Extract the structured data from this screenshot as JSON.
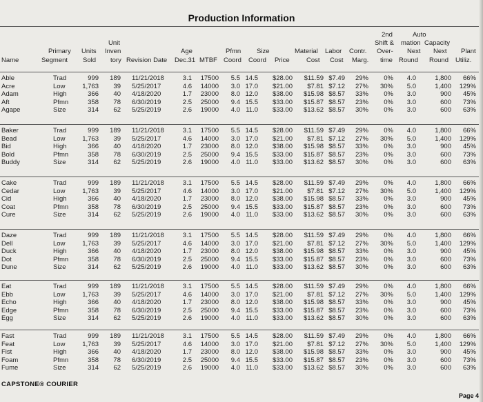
{
  "title": "Production Information",
  "headers": {
    "name": "Name",
    "segment": [
      "Primary",
      "Segment"
    ],
    "units": [
      "Units",
      "Sold"
    ],
    "inven": [
      "Unit",
      "Inven",
      "tory"
    ],
    "revision": [
      "Revision Date"
    ],
    "age": [
      "Age",
      "Dec.31"
    ],
    "mtbf": [
      "MTBF"
    ],
    "pfmn": [
      "Pfmn",
      "Coord"
    ],
    "size": [
      "Size",
      "Coord"
    ],
    "price": [
      "Price"
    ],
    "material": [
      "Material",
      "Cost"
    ],
    "labor": [
      "Labor",
      "Cost"
    ],
    "contr": [
      "Contr.",
      "Marg."
    ],
    "overtime": [
      "2nd",
      "Shift &",
      "Over-",
      "time"
    ],
    "automation": [
      "Auto",
      "mation",
      "Next",
      "Round"
    ],
    "capacity": [
      "Capacity",
      "Next",
      "Round"
    ],
    "plant": [
      "Plant",
      "Utiliz."
    ]
  },
  "groups": [
    {
      "names": [
        "Able",
        "Acre",
        "Adam",
        "Aft",
        "Agape"
      ],
      "segments": [
        "Trad",
        "Low",
        "High",
        "Pfmn",
        "Size"
      ],
      "units": [
        "999",
        "1,763",
        "366",
        "358",
        "314"
      ],
      "inven": [
        "189",
        "39",
        "40",
        "78",
        "62"
      ],
      "revision": [
        "11/21/2018",
        "5/25/2017",
        "4/18/2020",
        "6/30/2019",
        "5/25/2019"
      ],
      "age": [
        "3.1",
        "4.6",
        "1.7",
        "2.5",
        "2.6"
      ],
      "mtbf": [
        "17500",
        "14000",
        "23000",
        "25000",
        "19000"
      ],
      "pfmn": [
        "5.5",
        "3.0",
        "8.0",
        "9.4",
        "4.0"
      ],
      "size": [
        "14.5",
        "17.0",
        "12.0",
        "15.5",
        "11.0"
      ],
      "price": [
        "$28.00",
        "$21.00",
        "$38.00",
        "$33.00",
        "$33.00"
      ],
      "material": [
        "$11.59",
        "$7.81",
        "$15.98",
        "$15.87",
        "$13.62"
      ],
      "labor": [
        "$7.49",
        "$7.12",
        "$8.57",
        "$8.57",
        "$8.57"
      ],
      "contr": [
        "29%",
        "27%",
        "33%",
        "23%",
        "30%"
      ],
      "overtime": [
        "0%",
        "30%",
        "0%",
        "0%",
        "0%"
      ],
      "automation": [
        "4.0",
        "5.0",
        "3.0",
        "3.0",
        "3.0"
      ],
      "capacity": [
        "1,800",
        "1,400",
        "900",
        "600",
        "600"
      ],
      "plant": [
        "66%",
        "129%",
        "45%",
        "73%",
        "63%"
      ]
    },
    {
      "names": [
        "Baker",
        "Bead",
        "Bid",
        "Bold",
        "Buddy"
      ],
      "segments": [
        "Trad",
        "Low",
        "High",
        "Pfmn",
        "Size"
      ],
      "units": [
        "999",
        "1,763",
        "366",
        "358",
        "314"
      ],
      "inven": [
        "189",
        "39",
        "40",
        "78",
        "62"
      ],
      "revision": [
        "11/21/2018",
        "5/25/2017",
        "4/18/2020",
        "6/30/2019",
        "5/25/2019"
      ],
      "age": [
        "3.1",
        "4.6",
        "1.7",
        "2.5",
        "2.6"
      ],
      "mtbf": [
        "17500",
        "14000",
        "23000",
        "25000",
        "19000"
      ],
      "pfmn": [
        "5.5",
        "3.0",
        "8.0",
        "9.4",
        "4.0"
      ],
      "size": [
        "14.5",
        "17.0",
        "12.0",
        "15.5",
        "11.0"
      ],
      "price": [
        "$28.00",
        "$21.00",
        "$38.00",
        "$33.00",
        "$33.00"
      ],
      "material": [
        "$11.59",
        "$7.81",
        "$15.98",
        "$15.87",
        "$13.62"
      ],
      "labor": [
        "$7.49",
        "$7.12",
        "$8.57",
        "$8.57",
        "$8.57"
      ],
      "contr": [
        "29%",
        "27%",
        "33%",
        "23%",
        "30%"
      ],
      "overtime": [
        "0%",
        "30%",
        "0%",
        "0%",
        "0%"
      ],
      "automation": [
        "4.0",
        "5.0",
        "3.0",
        "3.0",
        "3.0"
      ],
      "capacity": [
        "1,800",
        "1,400",
        "900",
        "600",
        "600"
      ],
      "plant": [
        "66%",
        "129%",
        "45%",
        "73%",
        "63%"
      ]
    },
    {
      "names": [
        "Cake",
        "Cedar",
        "Cid",
        "Coat",
        "Cure"
      ],
      "segments": [
        "Trad",
        "Low",
        "High",
        "Pfmn",
        "Size"
      ],
      "units": [
        "999",
        "1,763",
        "366",
        "358",
        "314"
      ],
      "inven": [
        "189",
        "39",
        "40",
        "78",
        "62"
      ],
      "revision": [
        "11/21/2018",
        "5/25/2017",
        "4/18/2020",
        "6/30/2019",
        "5/25/2019"
      ],
      "age": [
        "3.1",
        "4.6",
        "1.7",
        "2.5",
        "2.6"
      ],
      "mtbf": [
        "17500",
        "14000",
        "23000",
        "25000",
        "19000"
      ],
      "pfmn": [
        "5.5",
        "3.0",
        "8.0",
        "9.4",
        "4.0"
      ],
      "size": [
        "14.5",
        "17.0",
        "12.0",
        "15.5",
        "11.0"
      ],
      "price": [
        "$28.00",
        "$21.00",
        "$38.00",
        "$33.00",
        "$33.00"
      ],
      "material": [
        "$11.59",
        "$7.81",
        "$15.98",
        "$15.87",
        "$13.62"
      ],
      "labor": [
        "$7.49",
        "$7.12",
        "$8.57",
        "$8.57",
        "$8.57"
      ],
      "contr": [
        "29%",
        "27%",
        "33%",
        "23%",
        "30%"
      ],
      "overtime": [
        "0%",
        "30%",
        "0%",
        "0%",
        "0%"
      ],
      "automation": [
        "4.0",
        "5.0",
        "3.0",
        "3.0",
        "3.0"
      ],
      "capacity": [
        "1,800",
        "1,400",
        "900",
        "600",
        "600"
      ],
      "plant": [
        "66%",
        "129%",
        "45%",
        "73%",
        "63%"
      ]
    },
    {
      "names": [
        "Daze",
        "Dell",
        "Duck",
        "Dot",
        "Dune"
      ],
      "segments": [
        "Trad",
        "Low",
        "High",
        "Pfmn",
        "Size"
      ],
      "units": [
        "999",
        "1,763",
        "366",
        "358",
        "314"
      ],
      "inven": [
        "189",
        "39",
        "40",
        "78",
        "62"
      ],
      "revision": [
        "11/21/2018",
        "5/25/2017",
        "4/18/2020",
        "6/30/2019",
        "5/25/2019"
      ],
      "age": [
        "3.1",
        "4.6",
        "1.7",
        "2.5",
        "2.6"
      ],
      "mtbf": [
        "17500",
        "14000",
        "23000",
        "25000",
        "19000"
      ],
      "pfmn": [
        "5.5",
        "3.0",
        "8.0",
        "9.4",
        "4.0"
      ],
      "size": [
        "14.5",
        "17.0",
        "12.0",
        "15.5",
        "11.0"
      ],
      "price": [
        "$28.00",
        "$21.00",
        "$38.00",
        "$33.00",
        "$33.00"
      ],
      "material": [
        "$11.59",
        "$7.81",
        "$15.98",
        "$15.87",
        "$13.62"
      ],
      "labor": [
        "$7.49",
        "$7.12",
        "$8.57",
        "$8.57",
        "$8.57"
      ],
      "contr": [
        "29%",
        "27%",
        "33%",
        "23%",
        "30%"
      ],
      "overtime": [
        "0%",
        "30%",
        "0%",
        "0%",
        "0%"
      ],
      "automation": [
        "4.0",
        "5.0",
        "3.0",
        "3.0",
        "3.0"
      ],
      "capacity": [
        "1,800",
        "1,400",
        "900",
        "600",
        "600"
      ],
      "plant": [
        "66%",
        "129%",
        "45%",
        "73%",
        "63%"
      ]
    },
    {
      "names": [
        "Eat",
        "Ebb",
        "Echo",
        "Edge",
        "Egg"
      ],
      "segments": [
        "Trad",
        "Low",
        "High",
        "Pfmn",
        "Size"
      ],
      "units": [
        "999",
        "1,763",
        "366",
        "358",
        "314"
      ],
      "inven": [
        "189",
        "39",
        "40",
        "78",
        "62"
      ],
      "revision": [
        "11/21/2018",
        "5/25/2017",
        "4/18/2020",
        "6/30/2019",
        "5/25/2019"
      ],
      "age": [
        "3.1",
        "4.6",
        "1.7",
        "2.5",
        "2.6"
      ],
      "mtbf": [
        "17500",
        "14000",
        "23000",
        "25000",
        "19000"
      ],
      "pfmn": [
        "5.5",
        "3.0",
        "8.0",
        "9.4",
        "4.0"
      ],
      "size": [
        "14.5",
        "17.0",
        "12.0",
        "15.5",
        "11.0"
      ],
      "price": [
        "$28.00",
        "$21.00",
        "$38.00",
        "$33.00",
        "$33.00"
      ],
      "material": [
        "$11.59",
        "$7.81",
        "$15.98",
        "$15.87",
        "$13.62"
      ],
      "labor": [
        "$7.49",
        "$7.12",
        "$8.57",
        "$8.57",
        "$8.57"
      ],
      "contr": [
        "29%",
        "27%",
        "33%",
        "23%",
        "30%"
      ],
      "overtime": [
        "0%",
        "30%",
        "0%",
        "0%",
        "0%"
      ],
      "automation": [
        "4.0",
        "5.0",
        "3.0",
        "3.0",
        "3.0"
      ],
      "capacity": [
        "1,800",
        "1,400",
        "900",
        "600",
        "600"
      ],
      "plant": [
        "66%",
        "129%",
        "45%",
        "73%",
        "63%"
      ]
    },
    {
      "names": [
        "Fast",
        "Feat",
        "Fist",
        "Foam",
        "Fume"
      ],
      "segments": [
        "Trad",
        "Low",
        "High",
        "Pfmn",
        "Size"
      ],
      "units": [
        "999",
        "1,763",
        "366",
        "358",
        "314"
      ],
      "inven": [
        "189",
        "39",
        "40",
        "78",
        "62"
      ],
      "revision": [
        "11/21/2018",
        "5/25/2017",
        "4/18/2020",
        "6/30/2019",
        "5/25/2019"
      ],
      "age": [
        "3.1",
        "4.6",
        "1.7",
        "2.5",
        "2.6"
      ],
      "mtbf": [
        "17500",
        "14000",
        "23000",
        "25000",
        "19000"
      ],
      "pfmn": [
        "5.5",
        "3.0",
        "8.0",
        "9.4",
        "4.0"
      ],
      "size": [
        "14.5",
        "17.0",
        "12.0",
        "15.5",
        "11.0"
      ],
      "price": [
        "$28.00",
        "$21.00",
        "$38.00",
        "$33.00",
        "$33.00"
      ],
      "material": [
        "$11.59",
        "$7.81",
        "$15.98",
        "$15.87",
        "$13.62"
      ],
      "labor": [
        "$7.49",
        "$7.12",
        "$8.57",
        "$8.57",
        "$8.57"
      ],
      "contr": [
        "29%",
        "27%",
        "33%",
        "23%",
        "30%"
      ],
      "overtime": [
        "0%",
        "30%",
        "0%",
        "0%",
        "0%"
      ],
      "automation": [
        "4.0",
        "5.0",
        "3.0",
        "3.0",
        "3.0"
      ],
      "capacity": [
        "1,800",
        "1,400",
        "900",
        "600",
        "600"
      ],
      "plant": [
        "66%",
        "129%",
        "45%",
        "73%",
        "63%"
      ]
    }
  ],
  "footer": {
    "brand": "CAPSTONE® COURIER",
    "page": "Page 4"
  }
}
